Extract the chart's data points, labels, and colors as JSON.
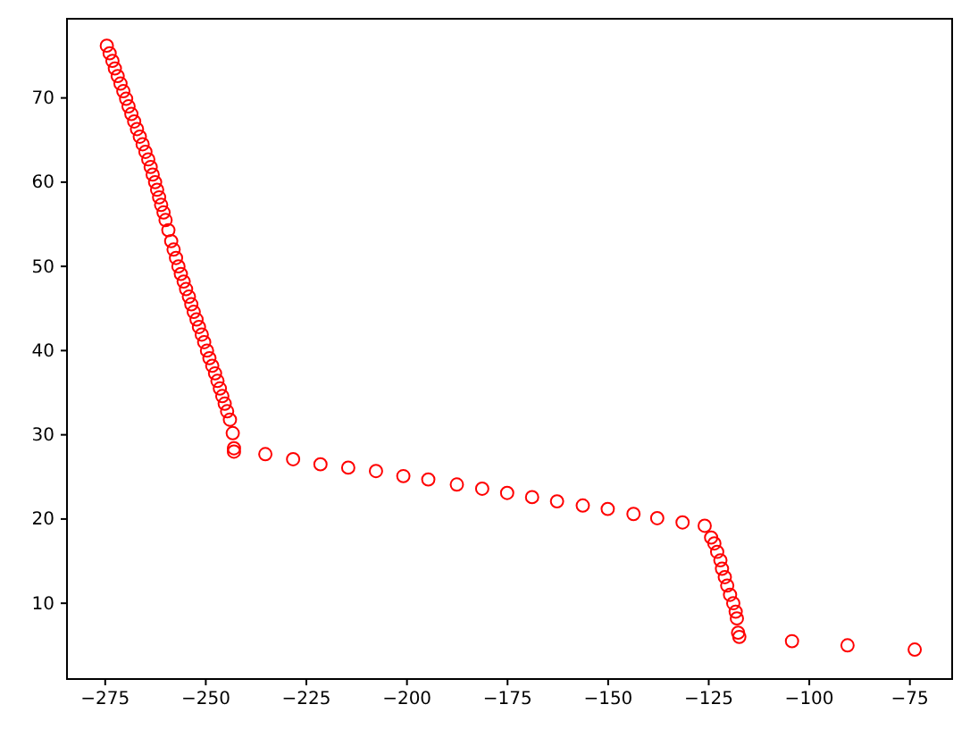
{
  "chart_data": {
    "type": "scatter",
    "xlim": [
      -284.5,
      -64.5
    ],
    "ylim": [
      1.0,
      79.4
    ],
    "xticks": [
      {
        "value": -275,
        "label": "−275"
      },
      {
        "value": -250,
        "label": "−250"
      },
      {
        "value": -225,
        "label": "−225"
      },
      {
        "value": -200,
        "label": "−200"
      },
      {
        "value": -175,
        "label": "−175"
      },
      {
        "value": -150,
        "label": "−150"
      },
      {
        "value": -125,
        "label": "−125"
      },
      {
        "value": -100,
        "label": "−100"
      },
      {
        "value": -75,
        "label": "−75"
      }
    ],
    "yticks": [
      10,
      20,
      30,
      40,
      50,
      60,
      70
    ],
    "grid": false,
    "marker": "circle",
    "series": [
      {
        "color": "#ff0000",
        "x": [
          -274.6,
          -273.9,
          -273.2,
          -272.6,
          -271.9,
          -271.2,
          -270.5,
          -269.8,
          -269.2,
          -268.5,
          -267.8,
          -267.1,
          -266.4,
          -265.7,
          -265.0,
          -264.3,
          -263.7,
          -263.2,
          -262.6,
          -262.1,
          -261.6,
          -261.1,
          -260.5,
          -260.0,
          -259.3,
          -258.6,
          -258.0,
          -257.4,
          -256.8,
          -256.2,
          -255.5,
          -254.9,
          -254.2,
          -253.6,
          -253.0,
          -252.3,
          -251.7,
          -251.0,
          -250.4,
          -249.7,
          -249.1,
          -248.4,
          -247.7,
          -247.1,
          -246.5,
          -245.9,
          -245.3,
          -244.7,
          -244.0,
          -243.3,
          -243.0,
          -243.0,
          -235.2,
          -228.3,
          -221.5,
          -214.6,
          -207.7,
          -200.9,
          -194.7,
          -187.6,
          -181.3,
          -175.1,
          -168.9,
          -162.7,
          -156.3,
          -150.1,
          -143.7,
          -137.8,
          -131.5,
          -126.0,
          -124.4,
          -123.6,
          -122.9,
          -122.1,
          -121.7,
          -121.0,
          -120.4,
          -119.7,
          -118.9,
          -118.3,
          -118.0,
          -117.7,
          -117.4,
          -104.3,
          -90.5,
          -73.8
        ],
        "values": [
          76.2,
          75.3,
          74.4,
          73.5,
          72.6,
          71.7,
          70.8,
          69.9,
          69.0,
          68.1,
          67.2,
          66.3,
          65.4,
          64.5,
          63.6,
          62.7,
          61.8,
          60.9,
          60.0,
          59.1,
          58.2,
          57.3,
          56.4,
          55.5,
          54.3,
          53.0,
          52.0,
          51.0,
          50.0,
          49.1,
          48.2,
          47.3,
          46.4,
          45.5,
          44.6,
          43.7,
          42.8,
          41.9,
          41.0,
          40.0,
          39.1,
          38.2,
          37.3,
          36.4,
          35.5,
          34.6,
          33.7,
          32.8,
          31.8,
          30.2,
          28.4,
          28.0,
          27.7,
          27.1,
          26.5,
          26.1,
          25.7,
          25.1,
          24.7,
          24.1,
          23.6,
          23.1,
          22.6,
          22.1,
          21.6,
          21.2,
          20.6,
          20.1,
          19.6,
          19.2,
          17.8,
          17.1,
          16.1,
          15.1,
          14.1,
          13.1,
          12.1,
          11.0,
          10.0,
          9.0,
          8.2,
          6.5,
          6.0,
          5.5,
          5.0,
          4.5
        ]
      }
    ]
  }
}
